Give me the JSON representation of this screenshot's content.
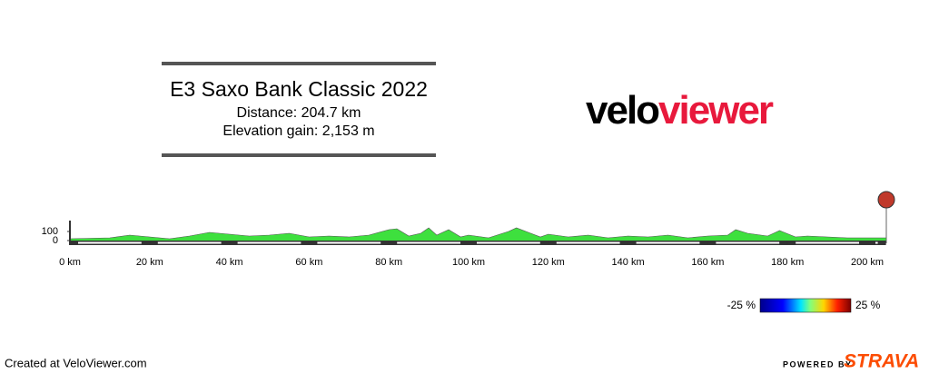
{
  "chart_data": {
    "type": "area",
    "title": "E3 Saxo Bank Classic 2022",
    "subtitle": [
      "Distance: 204.7 km",
      "Elevation gain: 2,153 m"
    ],
    "logo": {
      "velo": "velo",
      "viewer": "viewer"
    },
    "x": [
      0,
      5,
      10,
      15,
      20,
      25,
      30,
      35,
      40,
      45,
      50,
      55,
      60,
      65,
      70,
      75,
      80,
      82,
      85,
      88,
      90,
      92,
      95,
      98,
      100,
      105,
      110,
      112,
      115,
      118,
      120,
      125,
      130,
      135,
      140,
      145,
      150,
      155,
      160,
      165,
      167,
      170,
      175,
      178,
      182,
      185,
      190,
      195,
      200,
      204.7
    ],
    "values": [
      20,
      25,
      30,
      60,
      40,
      20,
      50,
      90,
      70,
      50,
      60,
      80,
      40,
      50,
      40,
      60,
      120,
      130,
      50,
      80,
      140,
      60,
      120,
      40,
      60,
      30,
      100,
      140,
      90,
      40,
      70,
      40,
      60,
      30,
      50,
      40,
      60,
      30,
      50,
      60,
      120,
      80,
      50,
      110,
      40,
      50,
      40,
      30,
      30,
      30
    ],
    "color": "#3ee03e",
    "xlim": [
      0,
      204.7
    ],
    "ylim": [
      0,
      200
    ],
    "xticks": [
      {
        "value": 0,
        "label": "0 km"
      },
      {
        "value": 20,
        "label": "20 km"
      },
      {
        "value": 40,
        "label": "40 km"
      },
      {
        "value": 60,
        "label": "60 km"
      },
      {
        "value": 80,
        "label": "80 km"
      },
      {
        "value": 100,
        "label": "100 km"
      },
      {
        "value": 120,
        "label": "120 km"
      },
      {
        "value": 140,
        "label": "140 km"
      },
      {
        "value": 160,
        "label": "160 km"
      },
      {
        "value": 180,
        "label": "180 km"
      },
      {
        "value": 200,
        "label": "200 km"
      }
    ],
    "yticks": [
      0,
      100
    ],
    "colorbar_labels": [
      "-25 %",
      "25 %"
    ],
    "footer": {
      "credit": "Created at VeloViewer.com",
      "powered_by": "POWERED BY",
      "brand": "STRAVA"
    }
  }
}
